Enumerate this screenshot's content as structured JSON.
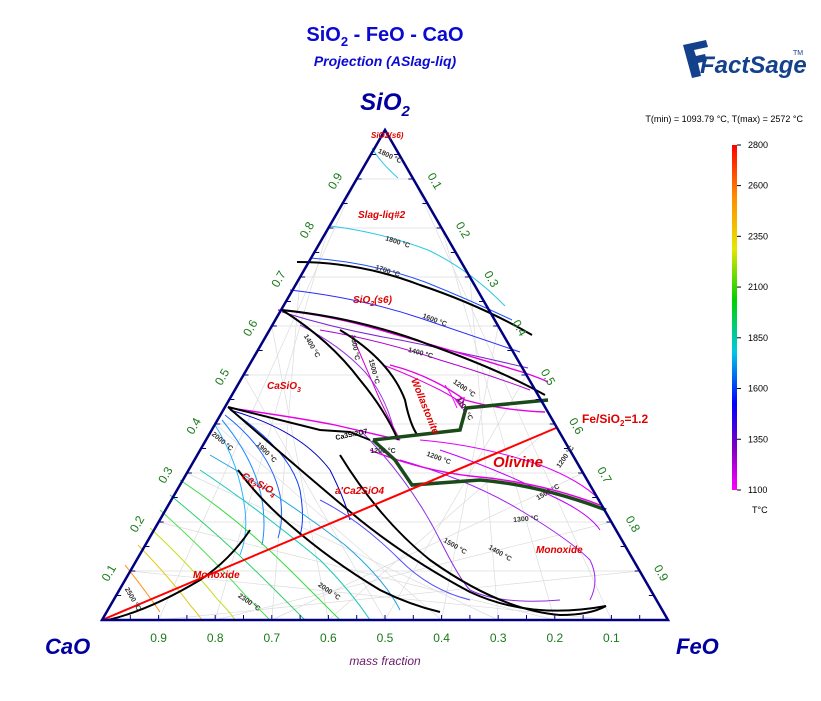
{
  "header": {
    "title_parts": [
      "SiO",
      "2",
      " - FeO - CaO"
    ],
    "subtitle": "Projection (ASlag-liq)"
  },
  "logo": {
    "text": "FactSage",
    "tm": "TM"
  },
  "corners": {
    "top": [
      "SiO",
      "2"
    ],
    "left": "CaO",
    "right": "FeO"
  },
  "axis_label": "mass fraction",
  "ticks": [
    "0.1",
    "0.2",
    "0.3",
    "0.4",
    "0.5",
    "0.6",
    "0.7",
    "0.8",
    "0.9"
  ],
  "trange": "T(min) = 1093.79 °C, T(max) = 2572 °C",
  "colorbar": {
    "labels": [
      "2800",
      "2600",
      "2350",
      "2100",
      "1850",
      "1600",
      "1350",
      "1100"
    ],
    "unit": "T°C"
  },
  "fields": {
    "sio2_s6_top": "SiO2(s6)",
    "slag_liq2": "Slag-liq#2",
    "sio2_s6": [
      "SiO",
      "2",
      "(s6)"
    ],
    "casio3": [
      "CaSiO",
      "3"
    ],
    "ca2sio4": [
      "Ca",
      "2",
      "SiO",
      "4"
    ],
    "ca3si2o7": "Ca3Si2O7",
    "a_ca2sio4": "a'Ca2SiO4",
    "wollastonite": "Wollastonite",
    "olivine": "Olivine",
    "monoxide_right": "Monoxide",
    "monoxide_left": "Monoxide"
  },
  "fe_ratio": [
    "Fe/SiO",
    "2",
    "=1.2"
  ],
  "isotherms": [
    {
      "text": "1800 °C",
      "color": "#333333"
    },
    {
      "text": "1800 °C",
      "color": "#333333"
    },
    {
      "text": "1700 °C",
      "color": "#333333"
    },
    {
      "text": "1600 °C",
      "color": "#333333"
    },
    {
      "text": "1400 °C",
      "color": "#333333"
    },
    {
      "text": "1400 °C",
      "color": "#333333"
    },
    {
      "text": "1500 °C",
      "color": "#333333"
    },
    {
      "text": "1300 °C",
      "color": "#333333"
    },
    {
      "text": "1200 °C",
      "color": "#333333"
    },
    {
      "text": "1100 °C",
      "color": "#333333"
    },
    {
      "text": "1200 °C",
      "color": "#333333"
    },
    {
      "text": "1200 °C",
      "color": "#333333"
    },
    {
      "text": "1200 °C",
      "color": "#333333"
    },
    {
      "text": "1300 °C",
      "color": "#333333"
    },
    {
      "text": "1500 °C",
      "color": "#333333"
    },
    {
      "text": "1400 °C",
      "color": "#333333"
    },
    {
      "text": "1500 °C",
      "color": "#333333"
    },
    {
      "text": "1900 °C",
      "color": "#333333"
    },
    {
      "text": "2000 °C",
      "color": "#333333"
    },
    {
      "text": "2000 °C",
      "color": "#333333"
    },
    {
      "text": "2300 °C",
      "color": "#333333"
    },
    {
      "text": "2500 °C",
      "color": "#333333"
    }
  ]
}
